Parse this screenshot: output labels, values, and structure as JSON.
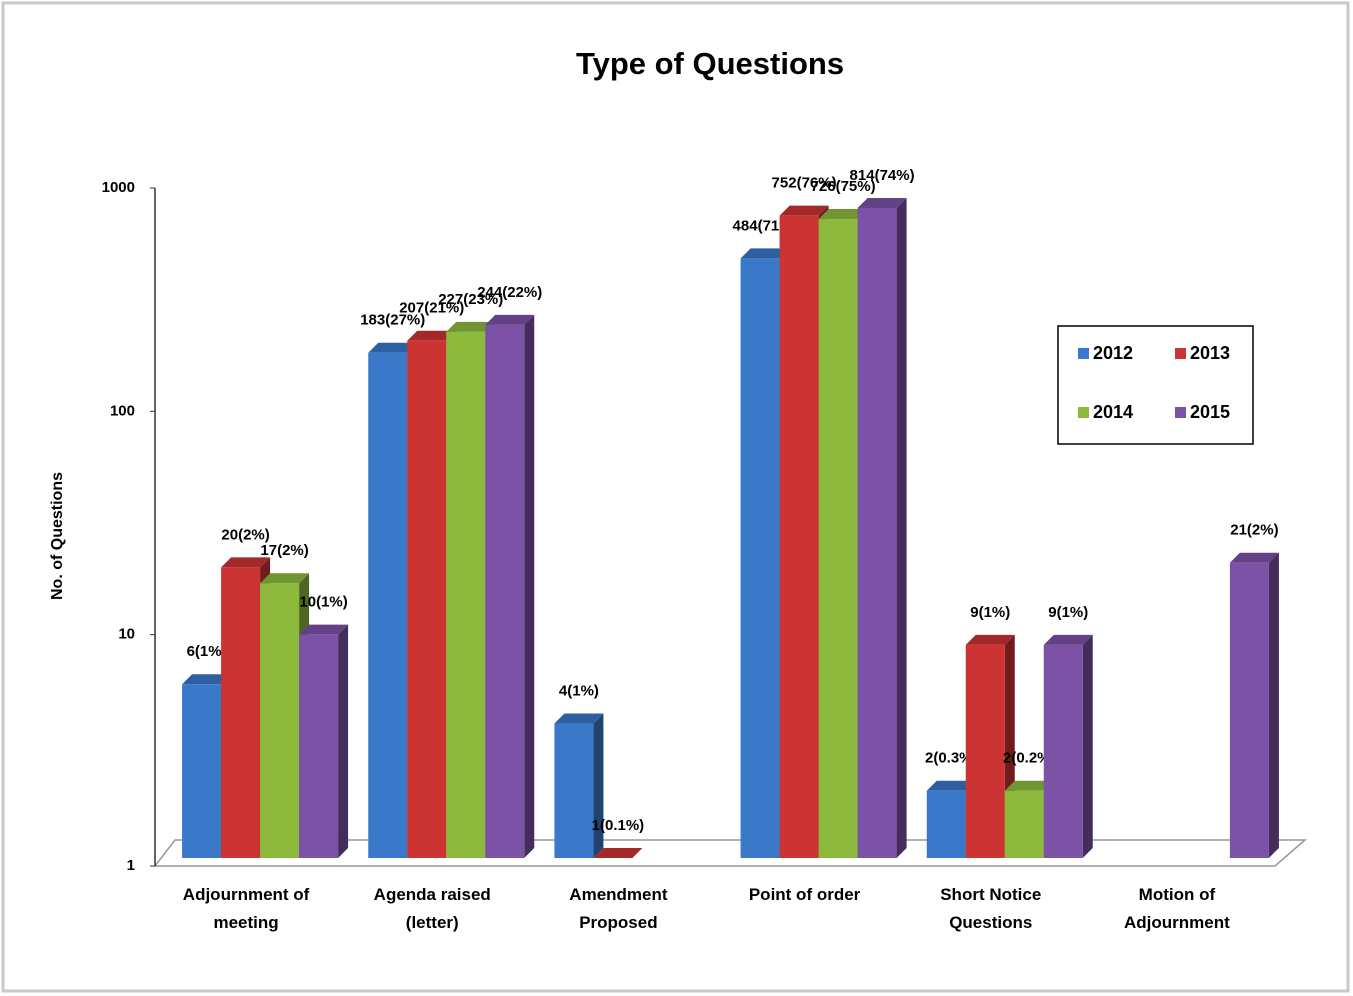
{
  "chart_data": {
    "type": "bar",
    "title": "Type of Questions",
    "y_label": "No. of Questions",
    "y_scale": "log",
    "ylim": [
      1,
      1000
    ],
    "yticks": [
      1,
      10,
      100,
      1000
    ],
    "grid": false,
    "legend_position": "right",
    "categories": [
      "Adjournment of\nmeeting",
      "Agenda raised\n(letter)",
      "Amendment\nProposed",
      "Point of order",
      "Short Notice\nQuestions",
      "Motion of\nAdjournment"
    ],
    "series": [
      {
        "name": "2012",
        "color": "#3a78c9",
        "values": [
          6,
          183,
          4,
          484,
          2,
          null
        ],
        "value_labels": [
          "6(1%)",
          "183(27%)",
          "4(1%)",
          "484(71%)",
          "2(0.3%)",
          null
        ]
      },
      {
        "name": "2013",
        "color": "#cc3333",
        "values": [
          20,
          207,
          1,
          752,
          9,
          null
        ],
        "value_labels": [
          "20(2%)",
          "207(21%)",
          "1(0.1%)",
          "752(76%)",
          "9(1%)",
          null
        ]
      },
      {
        "name": "2014",
        "color": "#8dba3c",
        "values": [
          17,
          227,
          null,
          726,
          2,
          null
        ],
        "value_labels": [
          "17(2%)",
          "227(23%)",
          null,
          "726(75%)",
          "2(0.2%)",
          null
        ]
      },
      {
        "name": "2015",
        "color": "#7b52a6",
        "values": [
          10,
          244,
          null,
          814,
          9,
          21
        ],
        "value_labels": [
          "10(1%)",
          "244(22%)",
          null,
          "814(74%)",
          "9(1%)",
          "21(2%)"
        ]
      }
    ]
  }
}
